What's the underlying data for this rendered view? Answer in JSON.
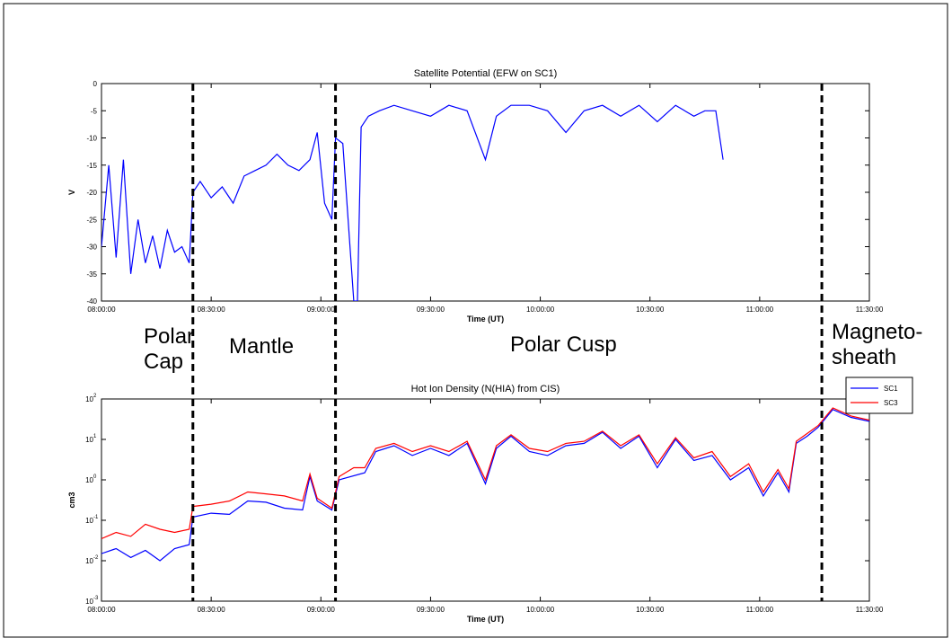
{
  "chart_data": [
    {
      "type": "line",
      "title": "Satellite Potential (EFW on SC1)",
      "xlabel": "Time (UT)",
      "ylabel": "V",
      "x_ticks": [
        "08:00:00",
        "08:30:00",
        "09:00:00",
        "09:30:00",
        "10:00:00",
        "10:30:00",
        "11:00:00",
        "11:30:00"
      ],
      "y_ticks": [
        "0",
        "-5",
        "-10",
        "-15",
        "-20",
        "-25",
        "-30",
        "-35",
        "-40"
      ],
      "xlim": [
        "08:00:00",
        "11:30:00"
      ],
      "ylim": [
        -40,
        0
      ],
      "grid": false,
      "series": [
        {
          "color": "#0000ff",
          "points": [
            [
              "08:00:00",
              -30
            ],
            [
              "08:02:00",
              -15
            ],
            [
              "08:04:00",
              -32
            ],
            [
              "08:06:00",
              -14
            ],
            [
              "08:08:00",
              -35
            ],
            [
              "08:10:00",
              -25
            ],
            [
              "08:12:00",
              -33
            ],
            [
              "08:14:00",
              -28
            ],
            [
              "08:16:00",
              -34
            ],
            [
              "08:18:00",
              -27
            ],
            [
              "08:20:00",
              -31
            ],
            [
              "08:22:00",
              -30
            ],
            [
              "08:24:00",
              -33
            ],
            [
              "08:25:00",
              -20
            ],
            [
              "08:27:00",
              -18
            ],
            [
              "08:30:00",
              -21
            ],
            [
              "08:33:00",
              -19
            ],
            [
              "08:36:00",
              -22
            ],
            [
              "08:39:00",
              -17
            ],
            [
              "08:42:00",
              -16
            ],
            [
              "08:45:00",
              -15
            ],
            [
              "08:48:00",
              -13
            ],
            [
              "08:51:00",
              -15
            ],
            [
              "08:54:00",
              -16
            ],
            [
              "08:57:00",
              -14
            ],
            [
              "08:59:00",
              -9
            ],
            [
              "09:01:00",
              -22
            ],
            [
              "09:03:00",
              -25
            ],
            [
              "09:04:00",
              -10
            ],
            [
              "09:06:00",
              -11
            ],
            [
              "09:09:00",
              -40
            ],
            [
              "09:10:00",
              -40
            ],
            [
              "09:11:00",
              -8
            ],
            [
              "09:13:00",
              -6
            ],
            [
              "09:16:00",
              -5
            ],
            [
              "09:20:00",
              -4
            ],
            [
              "09:25:00",
              -5
            ],
            [
              "09:30:00",
              -6
            ],
            [
              "09:35:00",
              -4
            ],
            [
              "09:40:00",
              -5
            ],
            [
              "09:45:00",
              -14
            ],
            [
              "09:48:00",
              -6
            ],
            [
              "09:52:00",
              -4
            ],
            [
              "09:57:00",
              -4
            ],
            [
              "10:02:00",
              -5
            ],
            [
              "10:07:00",
              -9
            ],
            [
              "10:12:00",
              -5
            ],
            [
              "10:17:00",
              -4
            ],
            [
              "10:22:00",
              -6
            ],
            [
              "10:27:00",
              -4
            ],
            [
              "10:32:00",
              -7
            ],
            [
              "10:37:00",
              -4
            ],
            [
              "10:42:00",
              -6
            ],
            [
              "10:45:00",
              -5
            ],
            [
              "10:48:00",
              -5
            ],
            [
              "10:50:00",
              -14
            ]
          ]
        }
      ]
    },
    {
      "type": "line",
      "title": "Hot Ion Density (N(HIA) from CIS)",
      "xlabel": "Time (UT)",
      "ylabel": "cm3",
      "x_ticks": [
        "08:00:00",
        "08:30:00",
        "09:00:00",
        "09:30:00",
        "10:00:00",
        "10:30:00",
        "11:00:00",
        "11:30:00"
      ],
      "y_ticks": [
        "10",
        "10",
        "10",
        "10",
        "10",
        "10"
      ],
      "y_tick_exponents": [
        "2",
        "1",
        "0",
        "-1",
        "-2",
        "-3"
      ],
      "xlim": [
        "08:00:00",
        "11:30:00"
      ],
      "ylim": [
        0.001,
        100
      ],
      "y_scale": "log",
      "grid": false,
      "legend_position": "top-right",
      "series": [
        {
          "name": "SC1",
          "color": "#0000ff",
          "points": [
            [
              "08:00:00",
              0.015
            ],
            [
              "08:04:00",
              0.02
            ],
            [
              "08:08:00",
              0.012
            ],
            [
              "08:12:00",
              0.018
            ],
            [
              "08:16:00",
              0.01
            ],
            [
              "08:20:00",
              0.02
            ],
            [
              "08:24:00",
              0.025
            ],
            [
              "08:25:00",
              0.12
            ],
            [
              "08:30:00",
              0.15
            ],
            [
              "08:35:00",
              0.14
            ],
            [
              "08:40:00",
              0.3
            ],
            [
              "08:45:00",
              0.28
            ],
            [
              "08:50:00",
              0.2
            ],
            [
              "08:55:00",
              0.18
            ],
            [
              "08:57:00",
              1.2
            ],
            [
              "08:59:00",
              0.3
            ],
            [
              "09:03:00",
              0.18
            ],
            [
              "09:05:00",
              1.0
            ],
            [
              "09:12:00",
              1.5
            ],
            [
              "09:15:00",
              5
            ],
            [
              "09:20:00",
              7
            ],
            [
              "09:25:00",
              4
            ],
            [
              "09:30:00",
              6
            ],
            [
              "09:35:00",
              4
            ],
            [
              "09:40:00",
              8
            ],
            [
              "09:45:00",
              0.8
            ],
            [
              "09:48:00",
              6
            ],
            [
              "09:52:00",
              12
            ],
            [
              "09:57:00",
              5
            ],
            [
              "10:02:00",
              4
            ],
            [
              "10:07:00",
              7
            ],
            [
              "10:12:00",
              8
            ],
            [
              "10:17:00",
              15
            ],
            [
              "10:22:00",
              6
            ],
            [
              "10:27:00",
              12
            ],
            [
              "10:32:00",
              2
            ],
            [
              "10:37:00",
              10
            ],
            [
              "10:42:00",
              3
            ],
            [
              "10:47:00",
              4
            ],
            [
              "10:52:00",
              1
            ],
            [
              "10:57:00",
              2
            ],
            [
              "11:01:00",
              0.4
            ],
            [
              "11:05:00",
              1.5
            ],
            [
              "11:08:00",
              0.5
            ],
            [
              "11:10:00",
              8
            ],
            [
              "11:13:00",
              12
            ],
            [
              "11:16:00",
              20
            ],
            [
              "11:20:00",
              55
            ],
            [
              "11:25:00",
              35
            ],
            [
              "11:30:00",
              28
            ]
          ]
        },
        {
          "name": "SC3",
          "color": "#ff0000",
          "points": [
            [
              "08:00:00",
              0.035
            ],
            [
              "08:04:00",
              0.05
            ],
            [
              "08:08:00",
              0.04
            ],
            [
              "08:12:00",
              0.08
            ],
            [
              "08:16:00",
              0.06
            ],
            [
              "08:20:00",
              0.05
            ],
            [
              "08:24:00",
              0.06
            ],
            [
              "08:25:00",
              0.22
            ],
            [
              "08:30:00",
              0.25
            ],
            [
              "08:35:00",
              0.3
            ],
            [
              "08:40:00",
              0.5
            ],
            [
              "08:45:00",
              0.45
            ],
            [
              "08:50:00",
              0.4
            ],
            [
              "08:55:00",
              0.3
            ],
            [
              "08:57:00",
              1.4
            ],
            [
              "08:59:00",
              0.35
            ],
            [
              "09:03:00",
              0.2
            ],
            [
              "09:05:00",
              1.2
            ],
            [
              "09:09:00",
              2
            ],
            [
              "09:12:00",
              2
            ],
            [
              "09:15:00",
              6
            ],
            [
              "09:20:00",
              8
            ],
            [
              "09:25:00",
              5
            ],
            [
              "09:30:00",
              7
            ],
            [
              "09:35:00",
              5
            ],
            [
              "09:40:00",
              9
            ],
            [
              "09:45:00",
              1
            ],
            [
              "09:48:00",
              7
            ],
            [
              "09:52:00",
              13
            ],
            [
              "09:57:00",
              6
            ],
            [
              "10:02:00",
              5
            ],
            [
              "10:07:00",
              8
            ],
            [
              "10:12:00",
              9
            ],
            [
              "10:17:00",
              16
            ],
            [
              "10:22:00",
              7
            ],
            [
              "10:27:00",
              13
            ],
            [
              "10:32:00",
              2.5
            ],
            [
              "10:37:00",
              11
            ],
            [
              "10:42:00",
              3.5
            ],
            [
              "10:47:00",
              5
            ],
            [
              "10:52:00",
              1.2
            ],
            [
              "10:57:00",
              2.5
            ],
            [
              "11:01:00",
              0.5
            ],
            [
              "11:05:00",
              1.8
            ],
            [
              "11:08:00",
              0.6
            ],
            [
              "11:10:00",
              9
            ],
            [
              "11:13:00",
              14
            ],
            [
              "11:16:00",
              22
            ],
            [
              "11:20:00",
              60
            ],
            [
              "11:25:00",
              38
            ],
            [
              "11:30:00",
              30
            ]
          ]
        }
      ]
    }
  ],
  "boundaries": [
    "08:25:00",
    "09:04:00",
    "11:17:00"
  ],
  "regions": [
    {
      "label": "Polar\nCap"
    },
    {
      "label": "Mantle"
    },
    {
      "label": "Polar Cusp"
    },
    {
      "label": "Magneto-\nsheath"
    }
  ]
}
